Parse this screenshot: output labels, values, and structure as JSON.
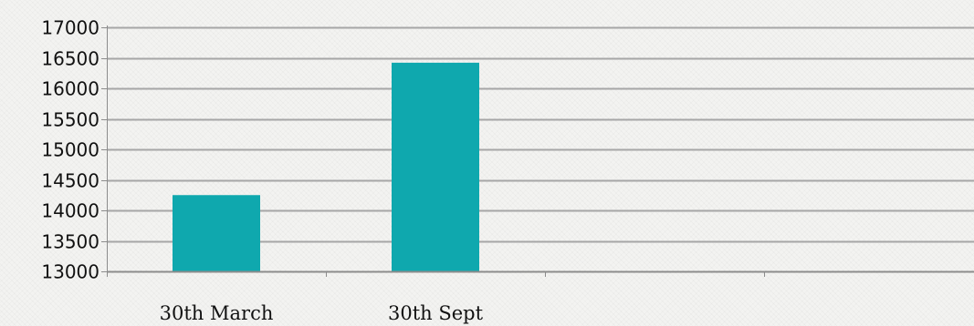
{
  "chart_data": {
    "type": "bar",
    "title": "",
    "xlabel": "",
    "ylabel": "",
    "categories": [
      "30th March",
      "30th Sept",
      "",
      ""
    ],
    "series": [
      {
        "values": [
          14250,
          16420,
          null,
          null
        ]
      }
    ],
    "ylim": [
      13000,
      17000
    ],
    "y_ticks": [
      "13000",
      "13500",
      "14000",
      "14500",
      "15000",
      "15500",
      "16000",
      "16500",
      "17000"
    ],
    "grid": true,
    "legend": "none",
    "colors": {
      "bar": "#0fa8ae",
      "grid": "#a6a6a6",
      "axis": "#8c8c8c",
      "text": "#111111"
    }
  }
}
